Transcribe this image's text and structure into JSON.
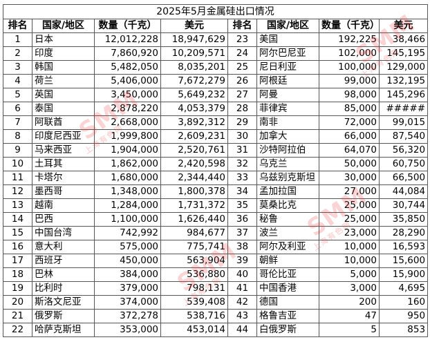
{
  "title": "2025年5月金属硅出口情况",
  "headers": {
    "rank": "排名",
    "country": "国家/地区",
    "qty": "数量（千克）",
    "usd": "美元"
  },
  "left_rows": [
    {
      "rank": "1",
      "country": "日本",
      "qty": "12,012,228",
      "usd": "18,947,629"
    },
    {
      "rank": "2",
      "country": "印度",
      "qty": "7,860,920",
      "usd": "10,209,571"
    },
    {
      "rank": "3",
      "country": "韩国",
      "qty": "5,482,050",
      "usd": "8,035,201"
    },
    {
      "rank": "4",
      "country": "荷兰",
      "qty": "5,406,000",
      "usd": "7,672,279"
    },
    {
      "rank": "5",
      "country": "英国",
      "qty": "3,450,000",
      "usd": "5,649,232"
    },
    {
      "rank": "6",
      "country": "泰国",
      "qty": "2,878,220",
      "usd": "4,053,379"
    },
    {
      "rank": "7",
      "country": "阿联酋",
      "qty": "2,668,000",
      "usd": "3,892,312"
    },
    {
      "rank": "8",
      "country": "印度尼西亚",
      "qty": "1,999,800",
      "usd": "2,609,231"
    },
    {
      "rank": "9",
      "country": "马来西亚",
      "qty": "1,904,000",
      "usd": "2,520,761"
    },
    {
      "rank": "10",
      "country": "土耳其",
      "qty": "1,862,000",
      "usd": "2,420,598"
    },
    {
      "rank": "11",
      "country": "卡塔尔",
      "qty": "1,680,000",
      "usd": "2,344,440"
    },
    {
      "rank": "12",
      "country": "墨西哥",
      "qty": "1,348,000",
      "usd": "1,800,378"
    },
    {
      "rank": "13",
      "country": "越南",
      "qty": "1,284,000",
      "usd": "1,731,372"
    },
    {
      "rank": "14",
      "country": "巴西",
      "qty": "1,100,000",
      "usd": "1,626,440"
    },
    {
      "rank": "15",
      "country": "中国台湾",
      "qty": "742,992",
      "usd": "984,677"
    },
    {
      "rank": "16",
      "country": "意大利",
      "qty": "575,000",
      "usd": "775,741"
    },
    {
      "rank": "17",
      "country": "西班牙",
      "qty": "450,000",
      "usd": "563,904"
    },
    {
      "rank": "18",
      "country": "巴林",
      "qty": "384,000",
      "usd": "536,880"
    },
    {
      "rank": "19",
      "country": "比利时",
      "qty": "379,000",
      "usd": "798,131"
    },
    {
      "rank": "20",
      "country": "斯洛文尼亚",
      "qty": "374,000",
      "usd": "539,408"
    },
    {
      "rank": "21",
      "country": "俄罗斯",
      "qty": "372,278",
      "usd": "538,716"
    },
    {
      "rank": "22",
      "country": "哈萨克斯坦",
      "qty": "353,000",
      "usd": "453,014"
    }
  ],
  "right_rows": [
    {
      "rank": "23",
      "country": "美国",
      "qty": "192,225",
      "usd": "38,466"
    },
    {
      "rank": "24",
      "country": "阿尔巴尼亚",
      "qty": "102,000",
      "usd": "145,195"
    },
    {
      "rank": "25",
      "country": "尼日利亚",
      "qty": "100,000",
      "usd": "129,000"
    },
    {
      "rank": "26",
      "country": "阿根廷",
      "qty": "99,000",
      "usd": "132,195"
    },
    {
      "rank": "27",
      "country": "阿曼",
      "qty": "98,000",
      "usd": "145,296"
    },
    {
      "rank": "28",
      "country": "菲律宾",
      "qty": "85,000",
      "usd": "#####"
    },
    {
      "rank": "29",
      "country": "南非",
      "qty": "72,000",
      "usd": "99,015"
    },
    {
      "rank": "30",
      "country": "加拿大",
      "qty": "66,000",
      "usd": "87,540"
    },
    {
      "rank": "31",
      "country": "沙特阿拉伯",
      "qty": "64,070",
      "usd": "56,320"
    },
    {
      "rank": "32",
      "country": "乌克兰",
      "qty": "50,000",
      "usd": "60,750"
    },
    {
      "rank": "33",
      "country": "乌兹别克斯坦",
      "qty": "30,000",
      "usd": "66,500"
    },
    {
      "rank": "34",
      "country": "孟加拉国",
      "qty": "27,000",
      "usd": "44,084"
    },
    {
      "rank": "35",
      "country": "莫桑比克",
      "qty": "25,000",
      "usd": "30,744"
    },
    {
      "rank": "36",
      "country": "秘鲁",
      "qty": "25,000",
      "usd": "35,850"
    },
    {
      "rank": "37",
      "country": "波兰",
      "qty": "23,000",
      "usd": "28,290"
    },
    {
      "rank": "38",
      "country": "阿尔及利亚",
      "qty": "10,000",
      "usd": "16,593"
    },
    {
      "rank": "39",
      "country": "朝鲜",
      "qty": "10,000",
      "usd": "15,600"
    },
    {
      "rank": "40",
      "country": "哥伦比亚",
      "qty": "5,000",
      "usd": "15,900"
    },
    {
      "rank": "41",
      "country": "中国香港",
      "qty": "3,000",
      "usd": "4,695"
    },
    {
      "rank": "42",
      "country": "德国",
      "qty": "200",
      "usd": "160"
    },
    {
      "rank": "43",
      "country": "格鲁吉亚",
      "qty": "47",
      "usd": "950"
    },
    {
      "rank": "44",
      "country": "白俄罗斯",
      "qty": "5",
      "usd": "853"
    }
  ],
  "watermark": {
    "brand": "SMM",
    "sub": "上海有色网"
  }
}
